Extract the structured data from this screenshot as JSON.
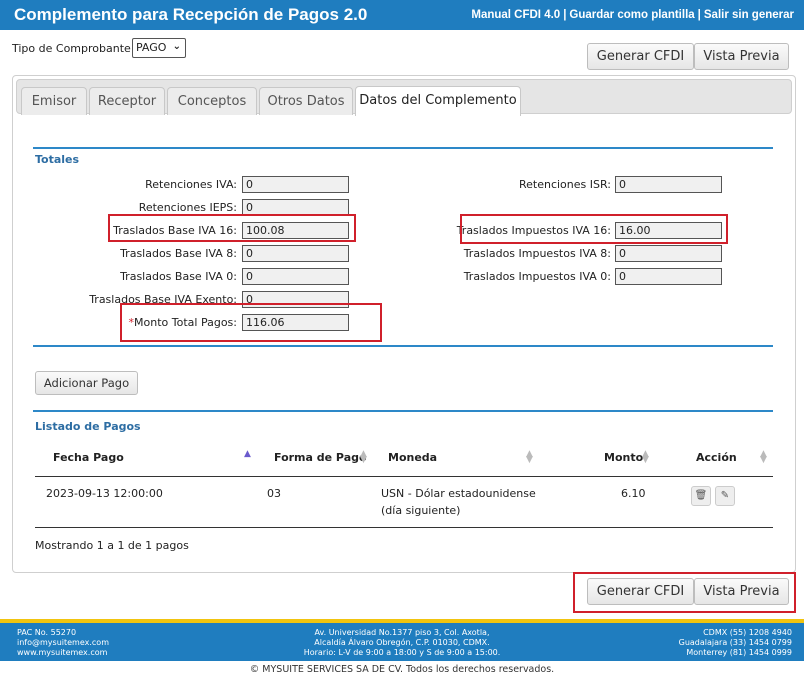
{
  "header": {
    "title": "Complemento para Recepción de Pagos  2.0",
    "links": [
      "Manual CFDI 4.0",
      "Guardar como plantilla",
      "Salir sin generar"
    ]
  },
  "tipo": {
    "label": "Tipo de Comprobante:",
    "value": "PAGO"
  },
  "actions": {
    "generar": "Generar CFDI",
    "vista": "Vista Previa"
  },
  "tabs": [
    "Emisor",
    "Receptor",
    "Conceptos",
    "Otros Datos",
    "Datos del Complemento"
  ],
  "totales": {
    "title": "Totales",
    "ret_iva": {
      "label": "Retenciones IVA:",
      "value": "0"
    },
    "ret_isr": {
      "label": "Retenciones ISR:",
      "value": "0"
    },
    "ret_ieps": {
      "label": "Retenciones IEPS:",
      "value": "0"
    },
    "tb_iva16": {
      "label": "Traslados Base IVA 16:",
      "value": "100.08"
    },
    "ti_iva16": {
      "label": "Traslados Impuestos IVA 16:",
      "value": "16.00"
    },
    "tb_iva8": {
      "label": "Traslados Base IVA 8:",
      "value": "0"
    },
    "ti_iva8": {
      "label": "Traslados Impuestos IVA 8:",
      "value": "0"
    },
    "tb_iva0": {
      "label": "Traslados Base IVA 0:",
      "value": "0"
    },
    "ti_iva0": {
      "label": "Traslados Impuestos IVA 0:",
      "value": "0"
    },
    "tb_exento": {
      "label": "Traslados Base IVA Exento:",
      "value": "0"
    },
    "monto_req": "*",
    "monto": {
      "label": "Monto Total Pagos:",
      "value": "116.06"
    }
  },
  "adicionar": "Adicionar Pago",
  "listado": {
    "title": "Listado de Pagos",
    "columns": [
      "Fecha Pago",
      "Forma de Pago",
      "Moneda",
      "Monto",
      "Acción"
    ],
    "rows": [
      {
        "fecha": "2023-09-13 12:00:00",
        "forma": "03",
        "moneda": "USN - Dólar estadounidense",
        "moneda2": "(día siguiente)",
        "monto": "6.10"
      }
    ],
    "info": "Mostrando 1 a 1 de 1 pagos"
  },
  "footer": {
    "left": [
      "PAC No. 55270",
      "info@mysuitemex.com",
      "www.mysuitemex.com"
    ],
    "center": [
      "Av. Universidad No.1377 piso 3, Col. Axotla,",
      "Alcaldía Álvaro Obregón, C.P. 01030, CDMX.",
      "Horario: L-V de 9:00 a 18:00 y S de 9:00 a 15:00."
    ],
    "right": [
      "CDMX (55) 1208 4940",
      "Guadalajara (33) 1454 0799",
      "Monterrey (81) 1454 0999"
    ],
    "copyright": "© MYSUITE SERVICES SA DE CV. Todos los derechos reservados."
  },
  "colors": {
    "brand": "#1f7dbf",
    "accent": "#2d88c8",
    "highlight": "#d0202b",
    "footer_stripe": "#f1c40f"
  }
}
